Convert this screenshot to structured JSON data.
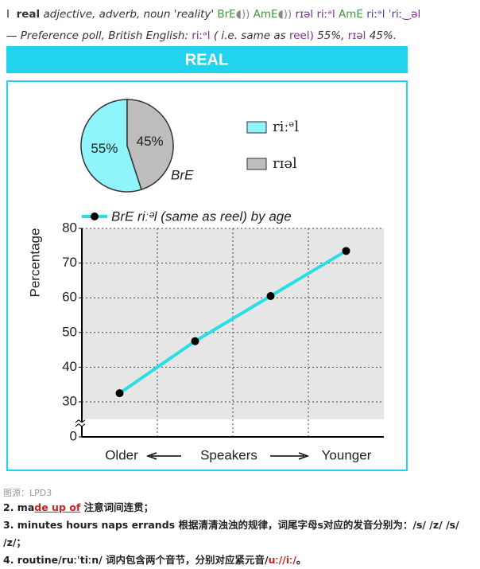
{
  "header": {
    "line1": [
      "I",
      "real",
      "adjective, adverb, noun 'reality'",
      "BrE",
      "AmE",
      "rɪəl",
      "riːᵊl",
      "AmE",
      "riːᵊl",
      "ˈriː‿əl"
    ],
    "line2": [
      "— Preference poll, British English:",
      "riːᵊl",
      "( i.e. same as",
      "reel)",
      "55%,",
      "rɪəl",
      "45%."
    ]
  },
  "chart_data": [
    {
      "type": "pie",
      "title": "REAL",
      "categories": [
        "riːᵊl",
        "rɪəl"
      ],
      "values": [
        55,
        45
      ],
      "value_labels": [
        "55%",
        "45%"
      ],
      "colors": [
        "#8ff5fb",
        "#bdbdbd"
      ],
      "label": "BrE"
    },
    {
      "type": "line",
      "series": [
        {
          "name": "BrE riːᵊl (same as reel) by age",
          "color": "#2adfe3",
          "values": [
            32.5,
            47.5,
            60.5,
            73.5
          ]
        }
      ],
      "categories": [
        null,
        null,
        null,
        null
      ],
      "ylabel": "Percentage",
      "x_labels": [
        "Older",
        "Speakers",
        "Younger"
      ],
      "ylim": [
        0,
        80
      ],
      "yticks": [
        0,
        30,
        40,
        50,
        60,
        70,
        80
      ],
      "y_break": [
        0,
        25
      ],
      "grid": true
    }
  ],
  "footer": {
    "source": "图源：LPD3",
    "item2": [
      "2. ma",
      "de up of",
      " 注意词间连贯；"
    ],
    "item3": "3. minutes hours naps errands 根据清清浊浊的规律，词尾字母s对应的发音分别为：/s/ /z/ /s/ /z/；",
    "item4": [
      "4. routine/ruːˈtiːn/ 词内包含两个音节，分别对应紧元音/",
      "uː//iː/",
      "。"
    ]
  }
}
